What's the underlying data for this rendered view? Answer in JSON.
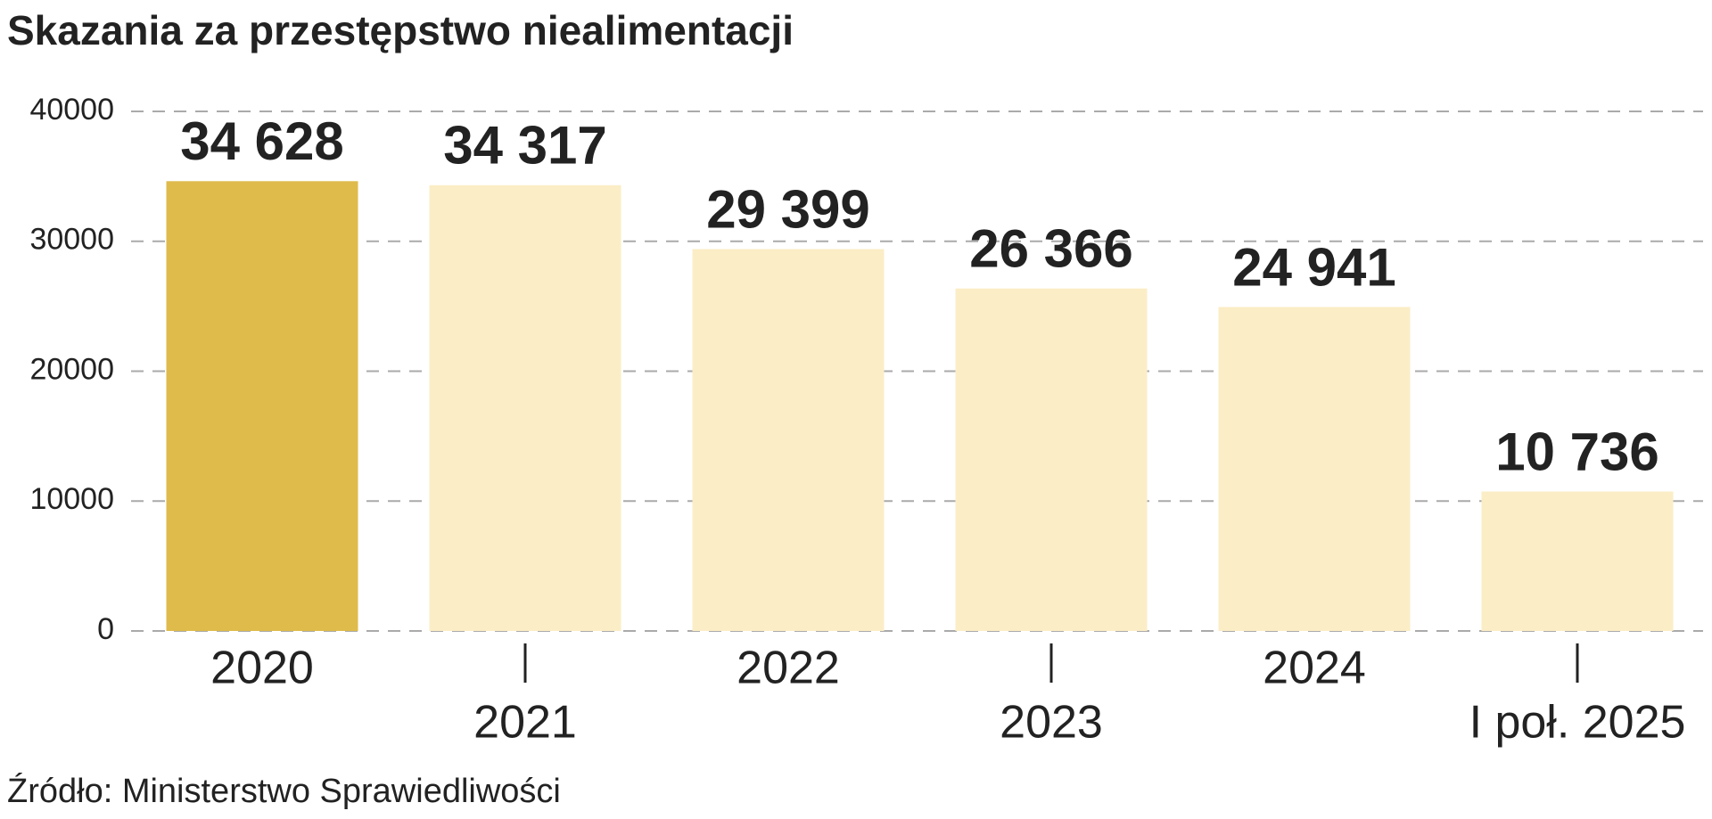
{
  "chart_data": {
    "type": "bar",
    "title": "Skazania za przestępstwo niealimentacji",
    "categories": [
      "2020",
      "2021",
      "2022",
      "2023",
      "2024",
      "I poł. 2025"
    ],
    "values": [
      34628,
      34317,
      29399,
      26366,
      24941,
      10736
    ],
    "value_labels": [
      "34 628",
      "34 317",
      "29 399",
      "26 366",
      "24 941",
      "10 736"
    ],
    "colors": [
      "#dfbb4c",
      "#fbedc6",
      "#fbedc6",
      "#fbedc6",
      "#fbedc6",
      "#fbedc6"
    ],
    "ylim": [
      0,
      40000
    ],
    "yticks": [
      0,
      10000,
      20000,
      30000,
      40000
    ],
    "grid": true,
    "source": "Źródło: Ministerstwo Sprawiedliwości"
  }
}
